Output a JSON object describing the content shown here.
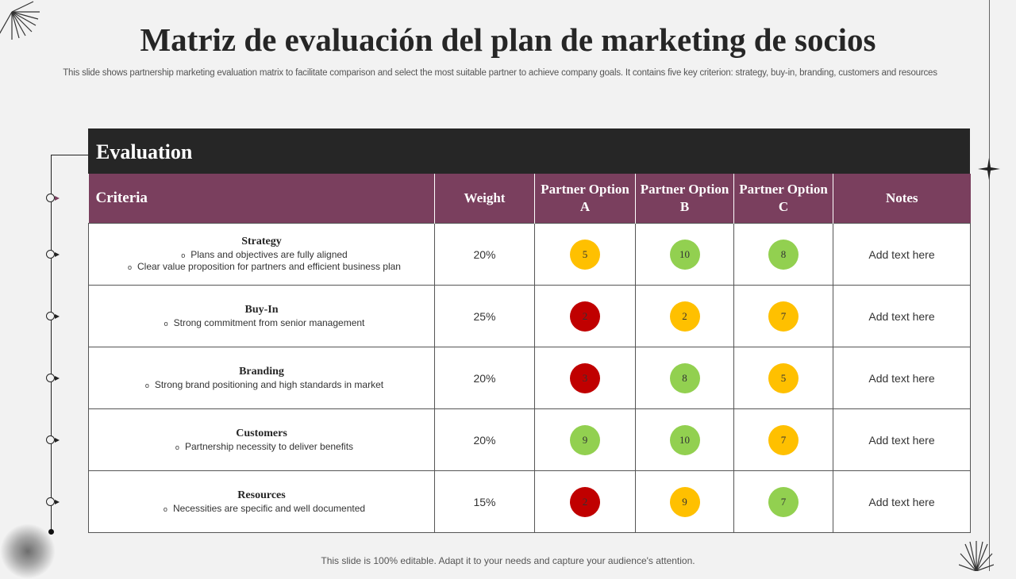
{
  "title": "Matriz de evaluación del plan de marketing de socios",
  "subtitle": "This slide shows partnership marketing evaluation matrix to facilitate comparison and select the most suitable partner to achieve company goals. It contains five key criterion: strategy, buy-in, branding, customers and resources",
  "section": "Evaluation",
  "headers": {
    "criteria": "Criteria",
    "weight": "Weight",
    "a": "Partner Option A",
    "b": "Partner Option B",
    "c": "Partner Option C",
    "notes": "Notes"
  },
  "colors": {
    "header": "#7a3f5e",
    "red": "#c00000",
    "yellow": "#ffc000",
    "green": "#92d050"
  },
  "rows": [
    {
      "name": "Strategy",
      "points": [
        "Plans and objectives are fully aligned",
        "Clear value proposition for partners and efficient business plan"
      ],
      "weight": "20%",
      "a": {
        "score": "5",
        "color": "yellow"
      },
      "b": {
        "score": "10",
        "color": "green"
      },
      "c": {
        "score": "8",
        "color": "green"
      },
      "notes": "Add text here"
    },
    {
      "name": "Buy-In",
      "points": [
        "Strong commitment from senior management"
      ],
      "weight": "25%",
      "a": {
        "score": "2",
        "color": "red"
      },
      "b": {
        "score": "2",
        "color": "yellow"
      },
      "c": {
        "score": "7",
        "color": "yellow"
      },
      "notes": "Add text here"
    },
    {
      "name": "Branding",
      "points": [
        "Strong brand positioning and high standards in market"
      ],
      "weight": "20%",
      "a": {
        "score": "3",
        "color": "red"
      },
      "b": {
        "score": "8",
        "color": "green"
      },
      "c": {
        "score": "5",
        "color": "yellow"
      },
      "notes": "Add text here"
    },
    {
      "name": "Customers",
      "points": [
        "Partnership necessity to deliver benefits"
      ],
      "weight": "20%",
      "a": {
        "score": "9",
        "color": "green"
      },
      "b": {
        "score": "10",
        "color": "green"
      },
      "c": {
        "score": "7",
        "color": "yellow"
      },
      "notes": "Add text here"
    },
    {
      "name": "Resources",
      "points": [
        "Necessities are specific and well documented"
      ],
      "weight": "15%",
      "a": {
        "score": "2",
        "color": "red"
      },
      "b": {
        "score": "9",
        "color": "yellow"
      },
      "c": {
        "score": "7",
        "color": "green"
      },
      "notes": "Add text here"
    }
  ],
  "footer": "This slide is 100% editable. Adapt it to your needs and capture your audience's attention."
}
